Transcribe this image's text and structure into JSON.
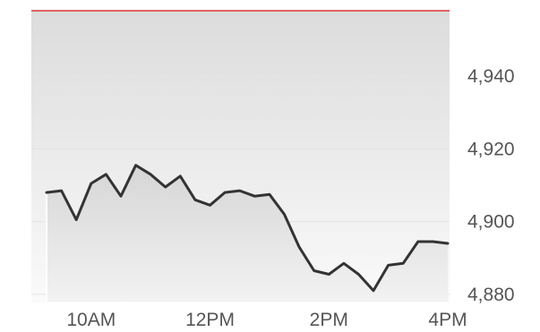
{
  "chart_data": {
    "type": "area",
    "title": "",
    "xlabel": "",
    "ylabel": "",
    "x_ticks": [
      {
        "label": "10AM",
        "hour": 10
      },
      {
        "label": "12PM",
        "hour": 12
      },
      {
        "label": "2PM",
        "hour": 14
      },
      {
        "label": "4PM",
        "hour": 16
      }
    ],
    "y_ticks": [
      {
        "label": "4,880",
        "value": 4880
      },
      {
        "label": "4,900",
        "value": 4900
      },
      {
        "label": "4,920",
        "value": 4920
      },
      {
        "label": "4,940",
        "value": 4940
      }
    ],
    "xlim": [
      9.25,
      16.0
    ],
    "ylim": [
      4878,
      4958
    ],
    "y_axis_position": "right",
    "grid": true,
    "series": [
      {
        "x": [
          9.25,
          9.5,
          9.75,
          10.0,
          10.25,
          10.5,
          10.75,
          11.0,
          11.25,
          11.5,
          11.75,
          12.0,
          12.25,
          12.5,
          12.75,
          13.0,
          13.25,
          13.5,
          13.75,
          14.0,
          14.25,
          14.5,
          14.75,
          15.0,
          15.25,
          15.5,
          15.75,
          16.0
        ],
        "y": [
          4908,
          4908.5,
          4900.5,
          4910.5,
          4913,
          4907,
          4915.5,
          4913,
          4909.5,
          4912.5,
          4906,
          4904.5,
          4908,
          4908.5,
          4907,
          4907.5,
          4902,
          4893,
          4886.5,
          4885.5,
          4888.5,
          4885.5,
          4881,
          4888,
          4888.5,
          4894.5,
          4894.5,
          4894
        ]
      }
    ],
    "colors": {
      "line": "#333333",
      "area_top": "#d6d6d6",
      "area_bottom": "#f2f2f2",
      "background_top": "#dcdcdc",
      "background_bottom": "#fafafa",
      "reference_line": "#e06060",
      "grid": "#e4e4e4",
      "tick_text": "#555555"
    }
  }
}
